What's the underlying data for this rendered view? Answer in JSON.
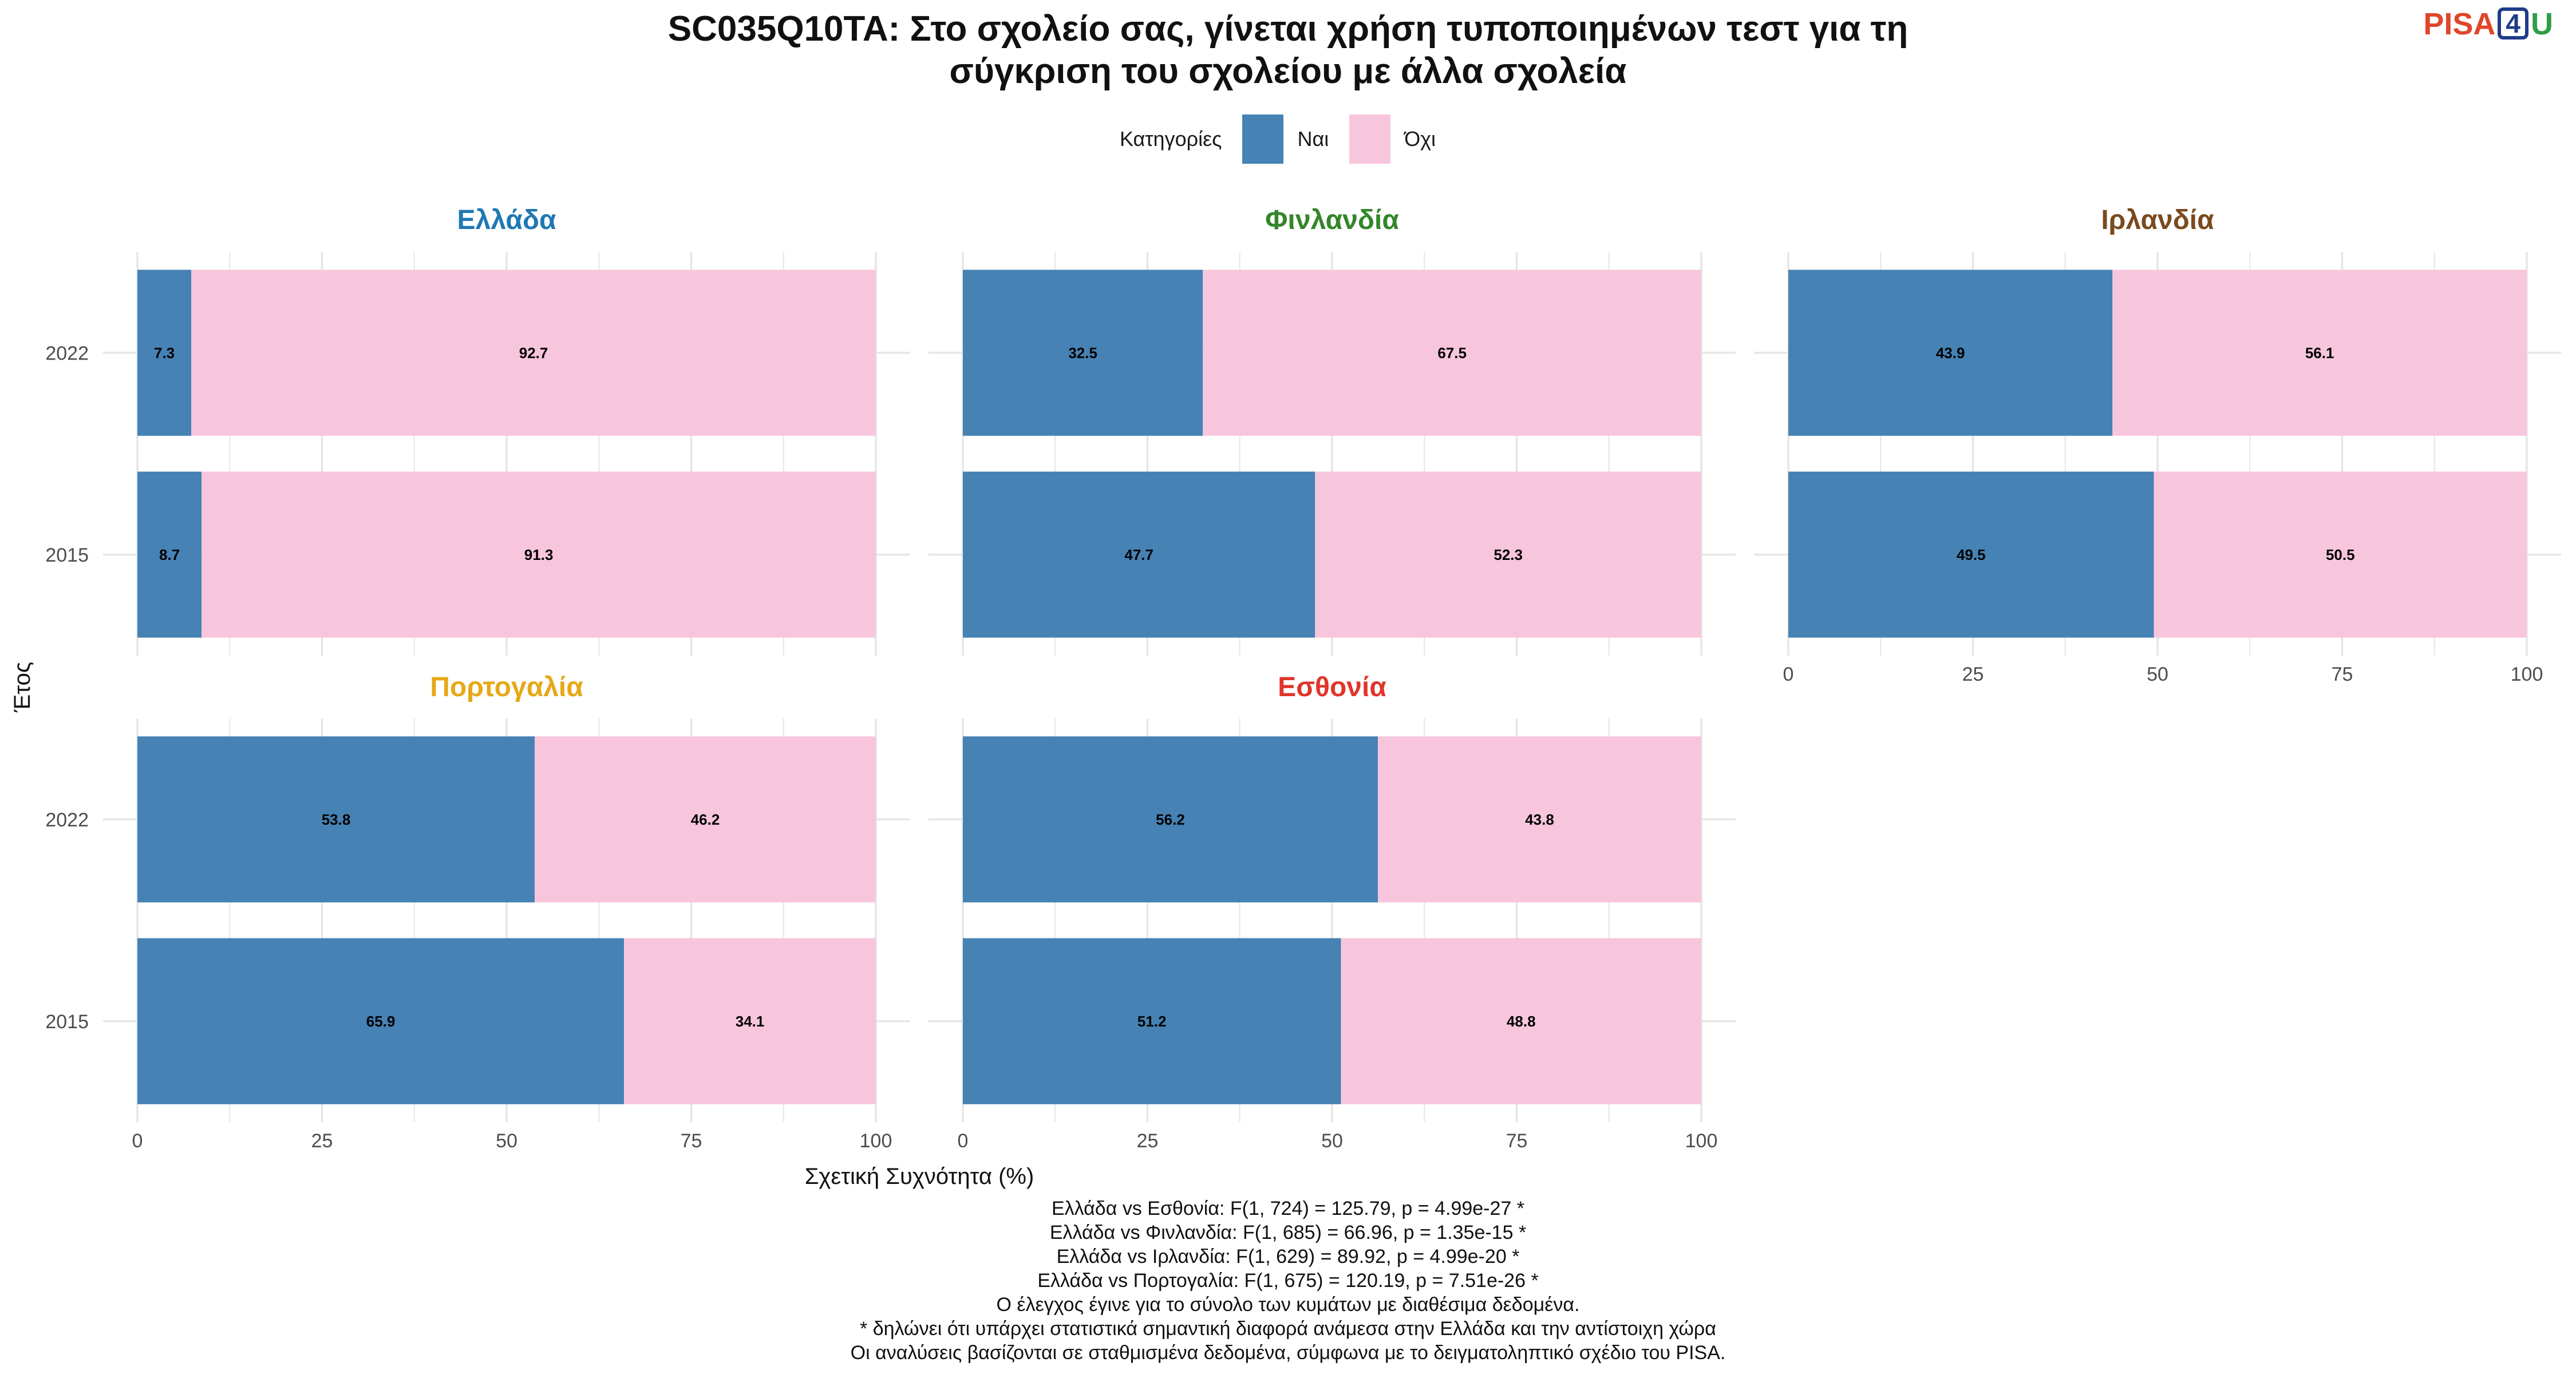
{
  "title_lines": [
    "SC035Q10TA: Στο σχολείο σας, γίνεται χρήση τυποποιημένων τεστ για τη",
    "σύγκριση του σχολείου με άλλα σχολεία"
  ],
  "logo": {
    "pisa": "PISA",
    "four": "4",
    "u": "U"
  },
  "legend": {
    "title": "Κατηγορίες",
    "items": [
      {
        "label": "Ναι",
        "color": "#4682b4"
      },
      {
        "label": "Όχι",
        "color": "#f7c6dc"
      }
    ]
  },
  "chart_data": {
    "type": "bar",
    "orientation": "horizontal",
    "stacked": true,
    "xlabel": "Σχετική Συχνότητα (%)",
    "ylabel": "Έτος",
    "xlim": [
      0,
      100
    ],
    "xticks": [
      "0",
      "25",
      "50",
      "75",
      "100"
    ],
    "categories": [
      "2022",
      "2015"
    ],
    "series_names": [
      "Ναι",
      "Όχι"
    ],
    "series_colors": [
      "#4682b4",
      "#f7c6dc"
    ],
    "legend_position": "top",
    "grid": true,
    "panels": [
      {
        "title": "Ελλάδα",
        "title_color": "#1f78b4",
        "nai": [
          7.3,
          8.7
        ],
        "oxi": [
          92.7,
          91.3
        ]
      },
      {
        "title": "Φινλανδία",
        "title_color": "#33862a",
        "nai": [
          32.5,
          47.7
        ],
        "oxi": [
          67.5,
          52.3
        ]
      },
      {
        "title": "Ιρλανδία",
        "title_color": "#7a4a1e",
        "nai": [
          43.9,
          49.5
        ],
        "oxi": [
          56.1,
          50.5
        ]
      },
      {
        "title": "Πορτογαλία",
        "title_color": "#e6a817",
        "nai": [
          53.8,
          65.9
        ],
        "oxi": [
          46.2,
          34.1
        ]
      },
      {
        "title": "Εσθονία",
        "title_color": "#e0352b",
        "nai": [
          56.2,
          51.2
        ],
        "oxi": [
          43.8,
          48.8
        ]
      }
    ]
  },
  "notes": [
    "Ελλάδα vs Εσθονία: F(1, 724) = 125.79, p = 4.99e-27 *",
    "Ελλάδα vs Φινλανδία: F(1, 685) = 66.96, p = 1.35e-15 *",
    "Ελλάδα vs Ιρλανδία: F(1, 629) = 89.92, p = 4.99e-20 *",
    "Ελλάδα vs Πορτογαλία: F(1, 675) = 120.19, p = 7.51e-26 *",
    "Ο έλεγχος έγινε για το σύνολο των κυμάτων με διαθέσιμα δεδομένα.",
    "* δηλώνει ότι υπάρχει στατιστικά σημαντική διαφορά ανάμεσα στην Ελλάδα και την αντίστοιχη χώρα",
    "Οι αναλύσεις βασίζονται σε σταθμισμένα δεδομένα, σύμφωνα με το δειγματοληπτικό σχέδιο του PISA."
  ]
}
